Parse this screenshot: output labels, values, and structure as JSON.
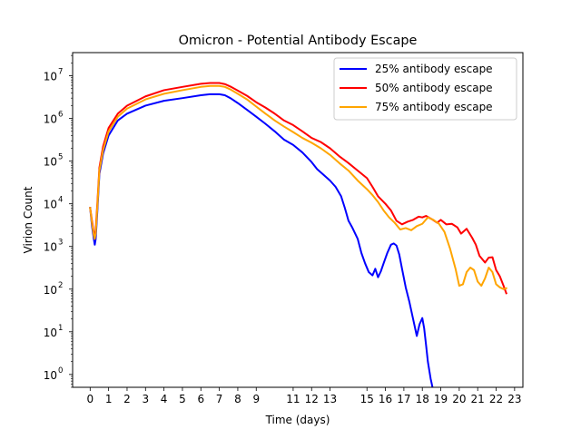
{
  "chart_data": {
    "type": "line",
    "title": "Omicron - Potential Antibody Escape",
    "xlabel": "Time (days)",
    "ylabel": "Virion Count",
    "xlim": [
      -0.95,
      23.45
    ],
    "ylim": [
      0.5,
      35000000
    ],
    "yscale": "log",
    "grid": false,
    "legend_position": "top-right",
    "xticks": [
      "0",
      "1",
      "2",
      "3",
      "4",
      "5",
      "6",
      "7",
      "8",
      "9",
      "11",
      "12",
      "13",
      "15",
      "16",
      "17",
      "18",
      "19",
      "20",
      "21",
      "22",
      "23"
    ],
    "yticks": [
      {
        "label": "10",
        "exp": "0",
        "value": 1
      },
      {
        "label": "10",
        "exp": "1",
        "value": 10
      },
      {
        "label": "10",
        "exp": "2",
        "value": 100
      },
      {
        "label": "10",
        "exp": "3",
        "value": 1000
      },
      {
        "label": "10",
        "exp": "4",
        "value": 10000
      },
      {
        "label": "10",
        "exp": "5",
        "value": 100000
      },
      {
        "label": "10",
        "exp": "6",
        "value": 1000000
      },
      {
        "label": "10",
        "exp": "7",
        "value": 10000000
      }
    ],
    "series": [
      {
        "name": "25% antibody escape",
        "color": "#0000ff",
        "x": [
          0,
          0.1,
          0.2,
          0.25,
          0.3,
          0.4,
          0.5,
          0.7,
          1,
          1.5,
          2,
          3,
          4,
          5,
          6,
          6.5,
          7,
          7.3,
          7.6,
          8,
          8.5,
          9,
          9.5,
          10,
          10.5,
          11,
          11.5,
          12,
          12.3,
          12.6,
          13,
          13.3,
          13.6,
          13.8,
          14,
          14.2,
          14.5,
          14.7,
          14.9,
          15.1,
          15.3,
          15.45,
          15.6,
          15.75,
          15.9,
          16.1,
          16.3,
          16.45,
          16.6,
          16.75,
          16.9,
          17.1,
          17.3,
          17.5,
          17.7,
          17.85,
          18,
          18.1,
          18.2,
          18.3,
          18.45,
          18.6,
          18.75
        ],
        "y": [
          8000,
          3000,
          1500,
          1100,
          1500,
          8000,
          50000,
          150000,
          400000,
          900000,
          1300000,
          2000000,
          2600000,
          3000000,
          3500000,
          3700000,
          3700000,
          3500000,
          3000000,
          2300000,
          1600000,
          1100000,
          750000,
          500000,
          320000,
          240000,
          160000,
          95000,
          65000,
          50000,
          35000,
          25000,
          15000,
          8000,
          4000,
          2800,
          1500,
          700,
          400,
          250,
          210,
          300,
          190,
          260,
          400,
          700,
          1100,
          1180,
          1050,
          650,
          300,
          110,
          50,
          20,
          8,
          15,
          21,
          12,
          5,
          2,
          0.8,
          0.4,
          0.15
        ]
      },
      {
        "name": "50% antibody escape",
        "color": "#ff0000",
        "x": [
          0,
          0.1,
          0.2,
          0.25,
          0.3,
          0.4,
          0.5,
          0.7,
          1,
          1.5,
          2,
          3,
          4,
          5,
          6,
          6.5,
          7,
          7.3,
          7.6,
          8,
          8.5,
          9,
          9.5,
          10,
          10.5,
          11,
          11.5,
          12,
          12.5,
          13,
          13.5,
          14,
          14.5,
          15,
          15.3,
          15.6,
          16,
          16.3,
          16.6,
          16.9,
          17.2,
          17.5,
          17.8,
          18,
          18.2,
          18.5,
          18.8,
          19,
          19.3,
          19.6,
          19.9,
          20.1,
          20.4,
          20.7,
          20.9,
          21.1,
          21.4,
          21.6,
          21.8,
          22,
          22.2,
          22.4,
          22.55
        ],
        "y": [
          8000,
          4000,
          2000,
          1700,
          2500,
          12000,
          70000,
          220000,
          600000,
          1300000,
          2000000,
          3300000,
          4600000,
          5500000,
          6500000,
          6800000,
          6800000,
          6400000,
          5600000,
          4500000,
          3400000,
          2400000,
          1800000,
          1300000,
          900000,
          700000,
          500000,
          350000,
          280000,
          200000,
          130000,
          90000,
          60000,
          40000,
          25000,
          15000,
          10000,
          7000,
          4000,
          3300,
          3800,
          4200,
          5000,
          4800,
          5200,
          4400,
          3600,
          4200,
          3300,
          3400,
          2800,
          2000,
          2600,
          1600,
          1100,
          600,
          420,
          550,
          560,
          280,
          200,
          120,
          80
        ]
      },
      {
        "name": "75% antibody escape",
        "color": "#ffa500",
        "x": [
          0,
          0.1,
          0.2,
          0.25,
          0.3,
          0.4,
          0.5,
          0.7,
          1,
          1.5,
          2,
          3,
          4,
          5,
          6,
          6.5,
          7,
          7.3,
          7.6,
          8,
          8.5,
          9,
          9.5,
          10,
          10.5,
          11,
          11.5,
          12,
          12.5,
          13,
          13.5,
          14,
          14.5,
          15,
          15.3,
          15.6,
          15.9,
          16.2,
          16.5,
          16.8,
          17.1,
          17.4,
          17.7,
          18,
          18.3,
          18.6,
          18.9,
          19.2,
          19.5,
          19.8,
          20,
          20.2,
          20.4,
          20.6,
          20.8,
          21,
          21.2,
          21.4,
          21.6,
          21.8,
          22,
          22.2,
          22.4,
          22.55
        ],
        "y": [
          8000,
          3500,
          1800,
          1500,
          2000,
          10000,
          60000,
          180000,
          500000,
          1100000,
          1700000,
          2800000,
          3800000,
          4600000,
          5500000,
          5800000,
          5800000,
          5500000,
          4800000,
          3800000,
          2800000,
          1900000,
          1300000,
          900000,
          650000,
          480000,
          350000,
          270000,
          200000,
          140000,
          90000,
          60000,
          35000,
          22000,
          16000,
          11000,
          7000,
          4800,
          3600,
          2500,
          2700,
          2400,
          3000,
          3400,
          4800,
          4200,
          3400,
          2200,
          900,
          300,
          120,
          130,
          250,
          320,
          280,
          150,
          120,
          180,
          320,
          250,
          130,
          110,
          100,
          105
        ]
      }
    ]
  }
}
